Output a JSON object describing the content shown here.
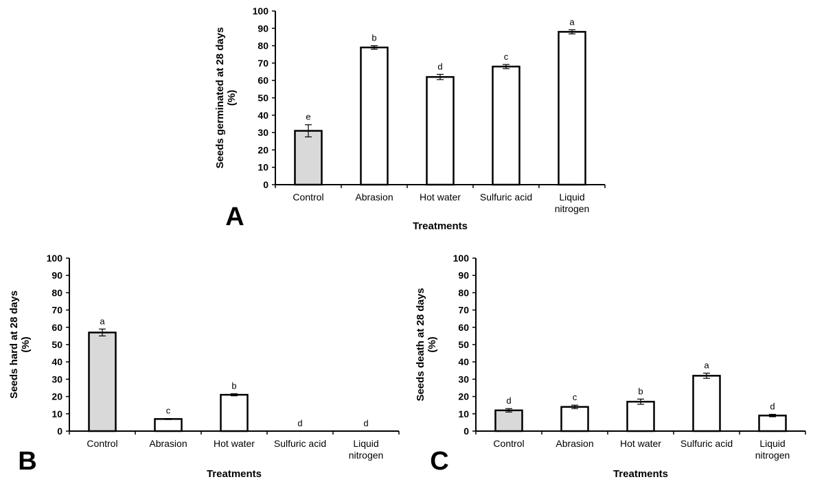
{
  "chart_data": [
    {
      "type": "bar",
      "panel": "A",
      "title": "",
      "ylabel": [
        "Seeds germinated at 28 days",
        "(%)"
      ],
      "xlabel": "Treatments",
      "categories": [
        [
          "Control"
        ],
        [
          "Abrasion"
        ],
        [
          "Hot water"
        ],
        [
          "Sulfuric acid"
        ],
        [
          "Liquid",
          "nitrogen"
        ]
      ],
      "values": [
        31,
        79,
        62,
        68,
        88
      ],
      "errors": [
        3.5,
        1,
        1.5,
        1.2,
        1.2
      ],
      "letters": [
        "e",
        "b",
        "d",
        "c",
        "a"
      ],
      "ylim": [
        0,
        100
      ],
      "yticks": [
        0,
        10,
        20,
        30,
        40,
        50,
        60,
        70,
        80,
        90,
        100
      ],
      "grid": false,
      "bar_colors": [
        "#d9d9d9",
        "#ffffff",
        "#ffffff",
        "#ffffff",
        "#ffffff"
      ]
    },
    {
      "type": "bar",
      "panel": "B",
      "title": "",
      "ylabel": [
        "Seeds hard at 28 days",
        "(%)"
      ],
      "xlabel": "Treatments",
      "categories": [
        [
          "Control"
        ],
        [
          "Abrasion"
        ],
        [
          "Hot water"
        ],
        [
          "Sulfuric acid"
        ],
        [
          "Liquid",
          "nitrogen"
        ]
      ],
      "values": [
        57,
        7,
        21,
        0,
        0
      ],
      "errors": [
        2,
        0.3,
        0.6,
        0,
        0
      ],
      "letters": [
        "a",
        "c",
        "b",
        "d",
        "d"
      ],
      "ylim": [
        0,
        100
      ],
      "yticks": [
        0,
        10,
        20,
        30,
        40,
        50,
        60,
        70,
        80,
        90,
        100
      ],
      "grid": false,
      "bar_colors": [
        "#d9d9d9",
        "#ffffff",
        "#ffffff",
        "#ffffff",
        "#ffffff"
      ]
    },
    {
      "type": "bar",
      "panel": "C",
      "title": "",
      "ylabel": [
        "Seeds death at 28 days",
        "(%)"
      ],
      "xlabel": "Treatments",
      "categories": [
        [
          "Control"
        ],
        [
          "Abrasion"
        ],
        [
          "Hot water"
        ],
        [
          "Sulfuric acid"
        ],
        [
          "Liquid",
          "nitrogen"
        ]
      ],
      "values": [
        12,
        14,
        17,
        32,
        9
      ],
      "errors": [
        1,
        1,
        1.5,
        1.5,
        0.7
      ],
      "letters": [
        "d",
        "c",
        "b",
        "a",
        "d"
      ],
      "ylim": [
        0,
        100
      ],
      "yticks": [
        0,
        10,
        20,
        30,
        40,
        50,
        60,
        70,
        80,
        90,
        100
      ],
      "grid": false,
      "bar_colors": [
        "#d9d9d9",
        "#ffffff",
        "#ffffff",
        "#ffffff",
        "#ffffff"
      ]
    }
  ]
}
